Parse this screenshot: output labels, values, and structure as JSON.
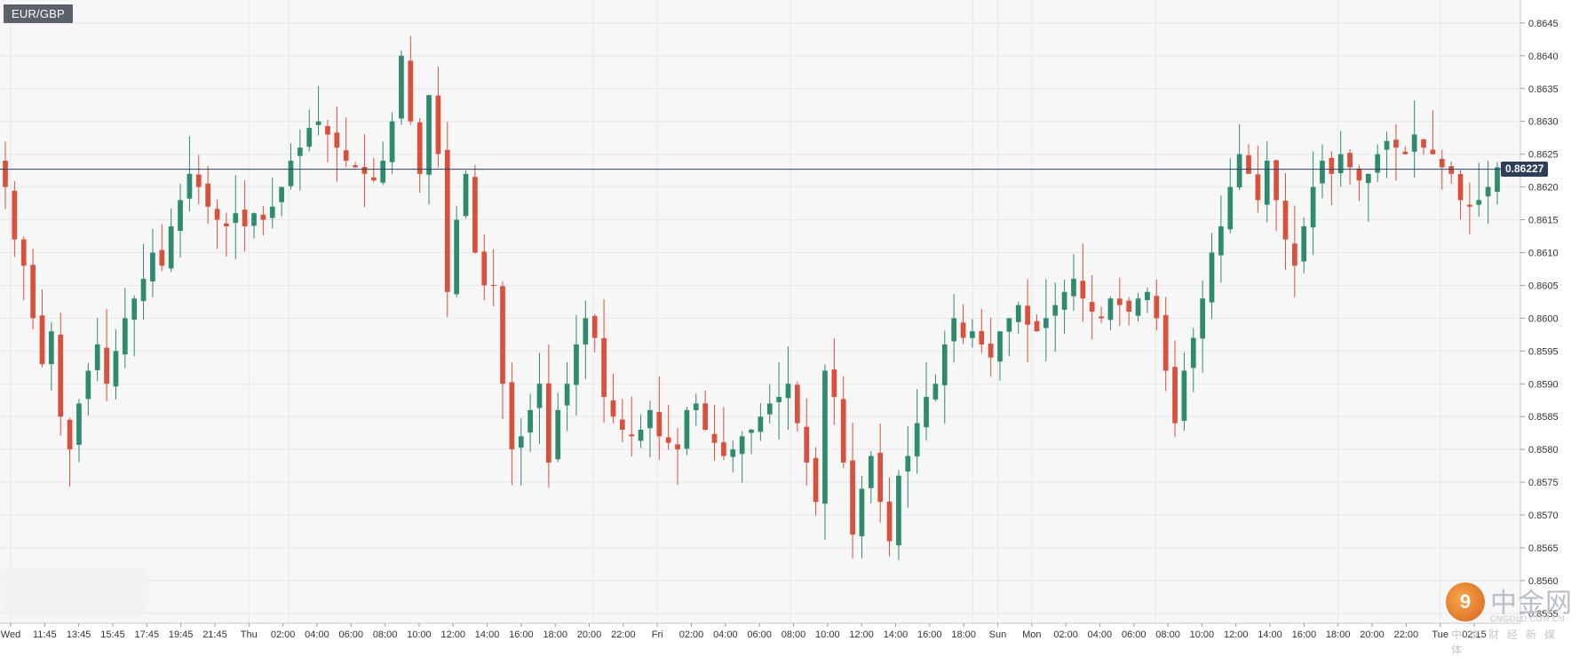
{
  "symbol": "EUR/GBP",
  "current_price_label": "0.86227",
  "watermark": {
    "title": "中金网",
    "subtitle": "CNGOLD.COM.CN",
    "chinese_tagline": "中文财经新媒体"
  },
  "colors": {
    "up": "#2e8b6e",
    "down": "#d9503c",
    "grid": "#e6e6ee",
    "background": "#f7f7f7",
    "price_line": "#2c3e5c"
  },
  "chart_data": {
    "type": "candlestick",
    "title": "",
    "xlabel": "",
    "ylabel": "",
    "ylim": [
      0.85535,
      0.86485
    ],
    "grid": true,
    "y_ticks": [
      "0.8555",
      "0.8560",
      "0.8565",
      "0.8570",
      "0.8575",
      "0.8580",
      "0.8585",
      "0.8590",
      "0.8595",
      "0.8600",
      "0.8605",
      "0.8610",
      "0.8615",
      "0.8620",
      "0.8625",
      "0.8630",
      "0.8635",
      "0.8640",
      "0.8645"
    ],
    "x_ticks": [
      "Wed",
      "11:45",
      "13:45",
      "15:45",
      "17:45",
      "19:45",
      "21:45",
      "Thu",
      "02:00",
      "04:00",
      "06:00",
      "08:00",
      "10:00",
      "12:00",
      "14:00",
      "16:00",
      "18:00",
      "20:00",
      "22:00",
      "Fri",
      "02:00",
      "04:00",
      "06:00",
      "08:00",
      "10:00",
      "12:00",
      "14:00",
      "16:00",
      "18:00",
      "Sun",
      "Mon",
      "02:00",
      "04:00",
      "06:00",
      "08:00",
      "10:00",
      "12:00",
      "14:00",
      "16:00",
      "18:00",
      "20:00",
      "22:00",
      "Tue",
      "02:15"
    ],
    "day_separators": [
      "Wed",
      "Thu",
      "Fri",
      "Sun",
      "Mon",
      "Tue"
    ],
    "current_price": 0.86227,
    "approx_close_series": [
      0.862,
      0.8612,
      0.8608,
      0.86,
      0.8593,
      0.8598,
      0.8585,
      0.858,
      0.8587,
      0.8592,
      0.8596,
      0.859,
      0.8595,
      0.86,
      0.8603,
      0.8606,
      0.861,
      0.8608,
      0.8614,
      0.8618,
      0.8622,
      0.862,
      0.8617,
      0.8615,
      0.8614,
      0.8616,
      0.8614,
      0.8616,
      0.8615,
      0.8617,
      0.862,
      0.8624,
      0.8626,
      0.8629,
      0.863,
      0.8628,
      0.8626,
      0.8624,
      0.8623,
      0.8622,
      0.8621,
      0.8624,
      0.863,
      0.864,
      0.863,
      0.8622,
      0.8634,
      0.8625,
      0.8604,
      0.8615,
      0.8622,
      0.861,
      0.8605,
      0.8605,
      0.859,
      0.858,
      0.8582,
      0.8586,
      0.859,
      0.8578,
      0.8586,
      0.859,
      0.8596,
      0.86,
      0.8597,
      0.8588,
      0.8585,
      0.8583,
      0.8582,
      0.8583,
      0.8586,
      0.8582,
      0.8581,
      0.858,
      0.8586,
      0.8587,
      0.8583,
      0.8581,
      0.8579,
      0.858,
      0.8582,
      0.8583,
      0.8585,
      0.8587,
      0.8588,
      0.859,
      0.8584,
      0.8578,
      0.8572,
      0.8592,
      0.8588,
      0.8578,
      0.8567,
      0.8574,
      0.8579,
      0.8572,
      0.8566,
      0.8576,
      0.8579,
      0.8584,
      0.8588,
      0.859,
      0.8596,
      0.86,
      0.8597,
      0.8598,
      0.8596,
      0.8594,
      0.8598,
      0.86,
      0.8602,
      0.8599,
      0.8598,
      0.86,
      0.8602,
      0.8604,
      0.8606,
      0.8603,
      0.8601,
      0.86,
      0.8603,
      0.8602,
      0.8601,
      0.8603,
      0.8604,
      0.86,
      0.8592,
      0.8584,
      0.8592,
      0.8597,
      0.8603,
      0.861,
      0.8614,
      0.862,
      0.8625,
      0.8622,
      0.8618,
      0.8624,
      0.8618,
      0.8612,
      0.8608,
      0.8614,
      0.862,
      0.8624,
      0.8622,
      0.8625,
      0.8623,
      0.8621,
      0.8622,
      0.8625,
      0.8627,
      0.8626,
      0.8625,
      0.8628,
      0.8626,
      0.8625,
      0.8623,
      0.8622,
      0.8618,
      0.8617,
      0.8618,
      0.862,
      0.8623
    ]
  }
}
